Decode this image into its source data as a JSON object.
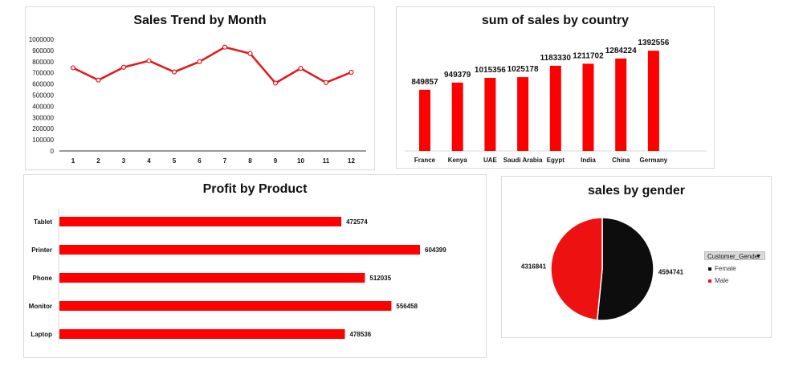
{
  "chart_data": [
    {
      "id": "sales-trend",
      "type": "line",
      "title": "Sales Trend by Month",
      "x": [
        "1",
        "2",
        "3",
        "4",
        "5",
        "6",
        "7",
        "8",
        "9",
        "10",
        "11",
        "12"
      ],
      "values": [
        745000,
        635000,
        750000,
        808000,
        708000,
        800000,
        930000,
        873000,
        608000,
        740000,
        613000,
        705000
      ],
      "ylim": [
        0,
        1000000
      ],
      "yticks": [
        "0",
        "100000",
        "200000",
        "300000",
        "400000",
        "500000",
        "600000",
        "700000",
        "800000",
        "900000",
        "1000000"
      ],
      "grid": false,
      "color": "#e8151b"
    },
    {
      "id": "sales-by-country",
      "type": "bar",
      "title": "sum of sales by country",
      "categories": [
        "France",
        "Kenya",
        "UAE",
        "Saudi Arabia",
        "Egypt",
        "India",
        "China",
        "Germany"
      ],
      "values": [
        849857,
        949379,
        1015356,
        1025178,
        1183330,
        1211702,
        1284224,
        1392556
      ],
      "labels": [
        "849857",
        "949379",
        "1015356",
        "1025178",
        "1183330",
        "1211702",
        "1284224",
        "1392556"
      ],
      "ylim": [
        0,
        1450000
      ],
      "color": "#ff0000"
    },
    {
      "id": "profit-by-product",
      "type": "bar",
      "orientation": "horizontal",
      "title": "Profit by Product",
      "categories": [
        "Tablet",
        "Printer",
        "Phone",
        "Monitor",
        "Laptop"
      ],
      "values": [
        472574,
        604399,
        512035,
        556458,
        478536
      ],
      "labels": [
        "472574",
        "604399",
        "512035",
        "556458",
        "478536"
      ],
      "xlim": [
        0,
        604399
      ],
      "color": "#ff0000"
    },
    {
      "id": "sales-by-gender",
      "type": "pie",
      "title": "sales by gender",
      "slices": [
        {
          "name": "Female",
          "value": 4594741,
          "label": "4594741",
          "color": "#0d0d0d"
        },
        {
          "name": "Male",
          "value": 4316841,
          "label": "4316841",
          "color": "#ee1111"
        }
      ],
      "legend_title": "Customer_Gender",
      "legend_position": "right"
    }
  ],
  "legend": {
    "filter_arrow": "▼",
    "filter_icon": "dropdown-arrow-icon"
  }
}
